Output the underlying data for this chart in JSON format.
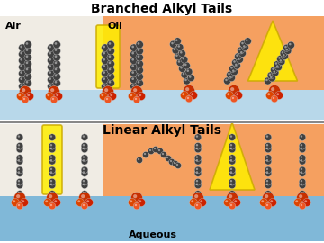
{
  "title_top": "Branched Alkyl Tails",
  "title_bottom": "Linear Alkyl Tails",
  "label_air": "Air",
  "label_oil": "Oil",
  "label_aqueous": "Aqueous",
  "air_bg": "#f5f0e8",
  "oil_bg": "#f5a060",
  "water_color_top": "#b8d8ea",
  "water_color_bot": "#80b8d8",
  "divider_color": "#aaaaaa",
  "title_fontsize": 10,
  "label_fontsize": 8,
  "fig_width": 3.6,
  "fig_height": 2.7,
  "dpi": 100
}
